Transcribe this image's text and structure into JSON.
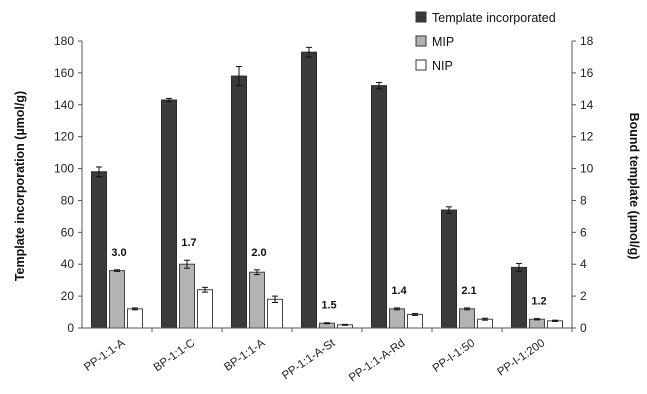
{
  "chart_data": {
    "type": "bar",
    "categories": [
      "PP-1:1-A",
      "BP-1:1-C",
      "BP-1:1-A",
      "PP-1:1-A-St",
      "PP-1:1-A-Rd",
      "PP-I-1:50",
      "PP-I-1:200"
    ],
    "ylabel": "Template incorporation (µmol/g)",
    "y2label": "Bound template (µmol/g)",
    "ylim": [
      0,
      180
    ],
    "yticks": [
      0,
      20,
      40,
      60,
      80,
      100,
      120,
      140,
      160,
      180
    ],
    "y2lim": [
      0,
      18
    ],
    "y2ticks": [
      0,
      2,
      4,
      6,
      8,
      10,
      12,
      14,
      16,
      18
    ],
    "grid": false,
    "legend_position": "top-right",
    "series": [
      {
        "name": "Template incorporated",
        "axis": "left",
        "color": "#3a3a3a",
        "values": [
          98,
          143,
          158,
          173,
          152,
          74,
          38
        ],
        "errors": [
          3,
          1,
          6,
          3,
          2,
          2,
          2.5
        ]
      },
      {
        "name": "MIP",
        "axis": "right",
        "color": "#b3b3b3",
        "values": [
          3.6,
          4.0,
          3.5,
          0.3,
          1.2,
          1.2,
          0.55
        ],
        "errors": [
          0.05,
          0.25,
          0.15,
          0.03,
          0.06,
          0.06,
          0.04
        ]
      },
      {
        "name": "NIP",
        "axis": "right",
        "color": "#ffffff",
        "values": [
          1.2,
          2.4,
          1.8,
          0.2,
          0.85,
          0.55,
          0.45
        ],
        "errors": [
          0.06,
          0.15,
          0.2,
          0.03,
          0.06,
          0.06,
          0.04
        ]
      }
    ],
    "ratio_labels": [
      "3.0",
      "1.7",
      "2.0",
      "1.5",
      "1.4",
      "2.1",
      "1.2"
    ]
  }
}
